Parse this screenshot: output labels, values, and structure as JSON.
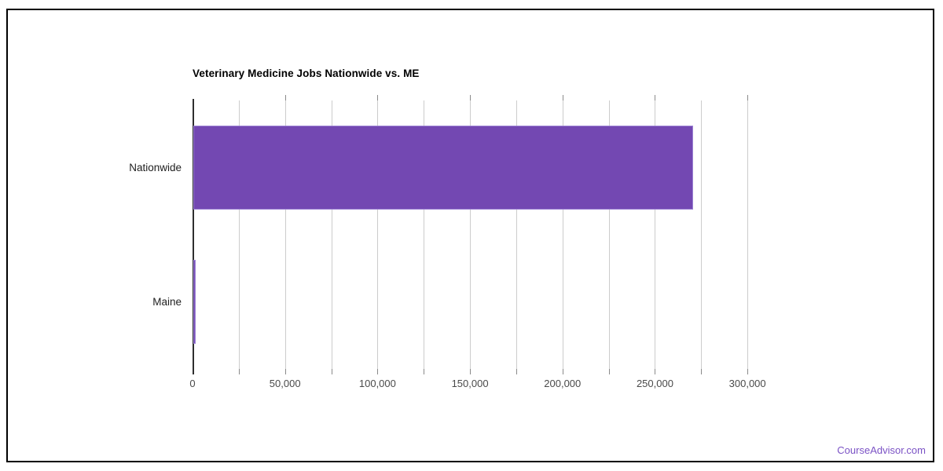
{
  "branding": {
    "label": "CourseAdvisor.com",
    "color": "#7b52c5"
  },
  "chart_data": {
    "type": "bar",
    "orientation": "horizontal",
    "title": "Veterinary Medicine Jobs Nationwide vs. ME",
    "categories": [
      "Nationwide",
      "Maine"
    ],
    "values": [
      270000,
      1300
    ],
    "xlabel": "",
    "ylabel": "",
    "xlim": [
      0,
      325000
    ],
    "x_tick_values": [
      0,
      50000,
      100000,
      150000,
      200000,
      250000,
      300000
    ],
    "x_tick_labels": [
      "0",
      "50,000",
      "100,000",
      "150,000",
      "200,000",
      "250,000",
      "300,000"
    ],
    "x_minor_tick_interval": 25000,
    "grid": true,
    "legend": "none",
    "colors": {
      "bar_fill": "#7348b2",
      "bar_border": "#9c82d4",
      "gridline": "#cccccc",
      "axis_line": "#2f2f2f",
      "tick_label": "#4a4a4a",
      "category_label": "#212121",
      "title": "#000000"
    }
  }
}
